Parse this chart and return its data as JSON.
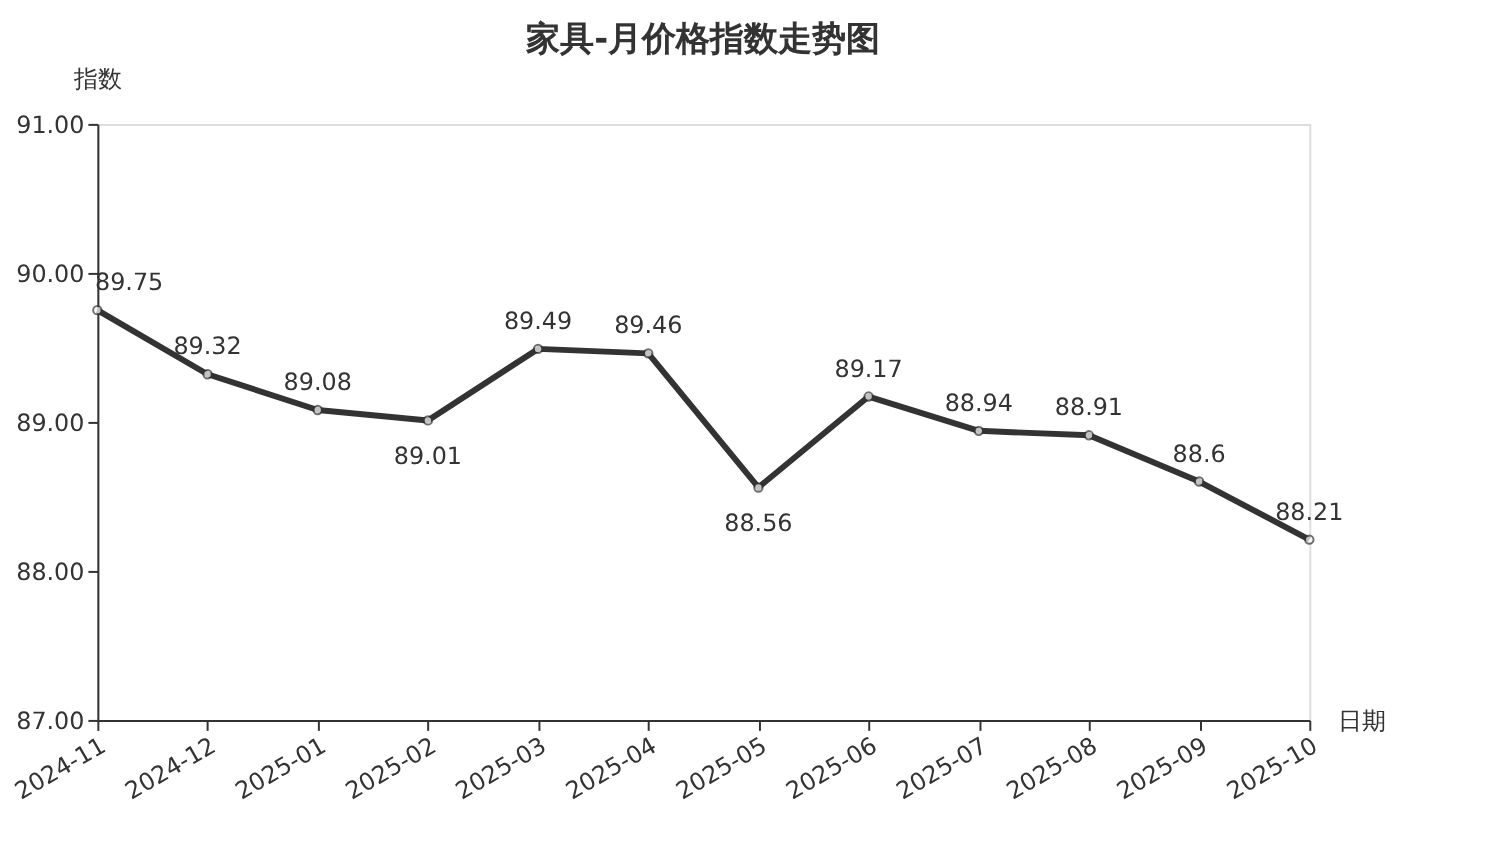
{
  "chart_data": {
    "type": "line",
    "title": "家具-月价格指数走势图",
    "xlabel": "日期",
    "ylabel": "指数",
    "categories": [
      "2024-11",
      "2024-12",
      "2025-01",
      "2025-02",
      "2025-03",
      "2025-04",
      "2025-05",
      "2025-06",
      "2025-07",
      "2025-08",
      "2025-09",
      "2025-10"
    ],
    "series": [
      {
        "color": "#333333",
        "values": [
          89.75,
          89.32,
          89.08,
          89.01,
          89.49,
          89.46,
          88.56,
          89.17,
          88.94,
          88.91,
          88.6,
          88.21
        ]
      }
    ],
    "ylim": [
      87,
      91
    ],
    "yticks": [
      {
        "value": 87,
        "label": "87.00"
      },
      {
        "value": 88,
        "label": "88.00"
      },
      {
        "value": 89,
        "label": "89.00"
      },
      {
        "value": 90,
        "label": "90.00"
      },
      {
        "value": 91,
        "label": "91.00"
      }
    ],
    "grid": false,
    "legend": false,
    "marker": "circle",
    "line_style": "solid",
    "data_labels": true
  }
}
